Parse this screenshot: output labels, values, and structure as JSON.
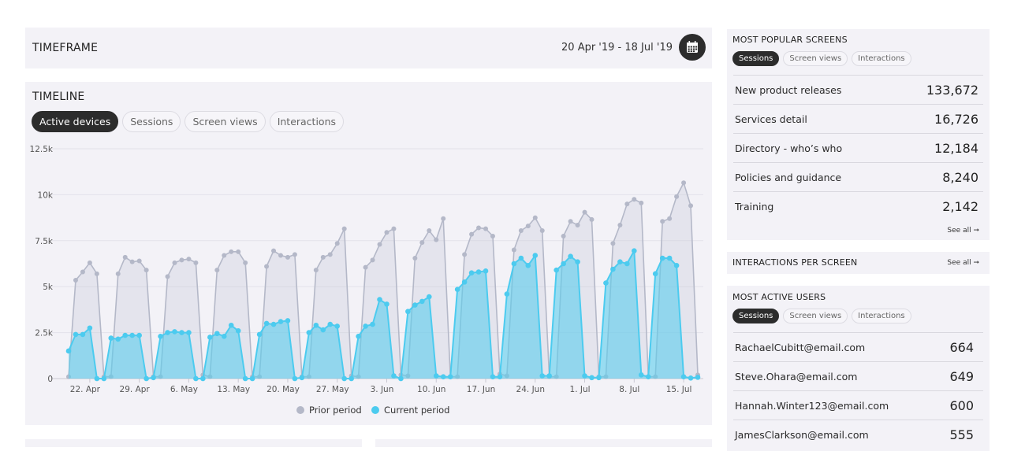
{
  "timeframe": {
    "title": "TIMEFRAME",
    "range": "20 Apr '19 - 18 Jul '19",
    "icon": "calendar-icon"
  },
  "timeline": {
    "title": "TIMELINE",
    "tabs": [
      {
        "label": "Active devices",
        "active": true
      },
      {
        "label": "Sessions",
        "active": false
      },
      {
        "label": "Screen views",
        "active": false
      },
      {
        "label": "Interactions",
        "active": false
      }
    ]
  },
  "chart_data": {
    "type": "area",
    "title": "",
    "xlabel": "",
    "ylabel": "",
    "ylim": [
      0,
      12500
    ],
    "y_ticks": [
      "0",
      "2.5k",
      "5k",
      "7.5k",
      "10k",
      "12.5k"
    ],
    "x_ticks": [
      "22. Apr",
      "29. Apr",
      "6. May",
      "13. May",
      "20. May",
      "27. May",
      "3. Jun",
      "10. Jun",
      "17. Jun",
      "24. Jun",
      "1. Jul",
      "8. Jul",
      "15. Jul"
    ],
    "grid": true,
    "legend": "bottom-center",
    "series": [
      {
        "name": "Prior period",
        "color": "#b4b8c8",
        "values": [
          100,
          5350,
          5800,
          6300,
          5700,
          100,
          100,
          5700,
          6600,
          6350,
          6400,
          5900,
          100,
          100,
          5550,
          6300,
          6450,
          6500,
          6300,
          200,
          100,
          5900,
          6700,
          6900,
          6900,
          6300,
          100,
          100,
          6100,
          6950,
          6700,
          6600,
          6750,
          100,
          100,
          5900,
          6600,
          6750,
          7350,
          8150,
          150,
          100,
          6050,
          6450,
          7300,
          7950,
          8150,
          200,
          150,
          6550,
          7400,
          8050,
          7550,
          8700,
          100,
          100,
          6750,
          7850,
          8200,
          8150,
          7750,
          250,
          150,
          7000,
          8050,
          8300,
          8750,
          8050,
          100,
          100,
          7750,
          8550,
          8350,
          9050,
          8650,
          100,
          100,
          7350,
          8350,
          9500,
          9750,
          9550,
          100,
          100,
          8550,
          8700,
          9900,
          10650,
          9400,
          200
        ]
      },
      {
        "name": "Current period",
        "color": "#4ccbef",
        "values": [
          1500,
          2400,
          2400,
          2750,
          0,
          0,
          2200,
          2150,
          2350,
          2350,
          2350,
          0,
          50,
          2300,
          2500,
          2550,
          2500,
          2500,
          0,
          0,
          2250,
          2450,
          2300,
          2900,
          2600,
          0,
          0,
          2400,
          3000,
          2950,
          3100,
          3150,
          0,
          50,
          2500,
          2900,
          2650,
          2950,
          2850,
          0,
          0,
          2300,
          2850,
          2950,
          4300,
          4050,
          150,
          0,
          3650,
          4000,
          4200,
          4450,
          150,
          100,
          100,
          4850,
          5250,
          5750,
          5800,
          5850,
          100,
          100,
          4600,
          6250,
          6550,
          6150,
          6700,
          150,
          150,
          5900,
          6250,
          6650,
          6350,
          150,
          50,
          50,
          5200,
          5950,
          6350,
          6250,
          6950,
          200,
          100,
          5700,
          6550,
          6550,
          6150,
          100,
          30,
          70
        ]
      }
    ]
  },
  "popular_screens": {
    "title": "MOST POPULAR SCREENS",
    "tabs": [
      {
        "label": "Sessions",
        "active": true
      },
      {
        "label": "Screen views",
        "active": false
      },
      {
        "label": "Interactions",
        "active": false
      }
    ],
    "rows": [
      {
        "label": "New product releases",
        "value": "133,672"
      },
      {
        "label": "Services detail",
        "value": "16,726"
      },
      {
        "label": "Directory - who’s who",
        "value": "12,184"
      },
      {
        "label": "Policies and guidance",
        "value": "8,240"
      },
      {
        "label": "Training",
        "value": "2,142"
      }
    ],
    "see_all": "See all ➞"
  },
  "interactions_per_screen": {
    "title": "INTERACTIONS PER SCREEN",
    "see_all": "See all ➞"
  },
  "active_users": {
    "title": "MOST ACTIVE USERS",
    "tabs": [
      {
        "label": "Sessions",
        "active": true
      },
      {
        "label": "Screen views",
        "active": false
      },
      {
        "label": "Interactions",
        "active": false
      }
    ],
    "rows": [
      {
        "label": "RachaelCubitt@email.com",
        "value": "664"
      },
      {
        "label": "Steve.Ohara@email.com",
        "value": "649"
      },
      {
        "label": "Hannah.Winter123@email.com",
        "value": "600"
      },
      {
        "label": "JamesClarkson@email.com",
        "value": "555"
      }
    ]
  }
}
